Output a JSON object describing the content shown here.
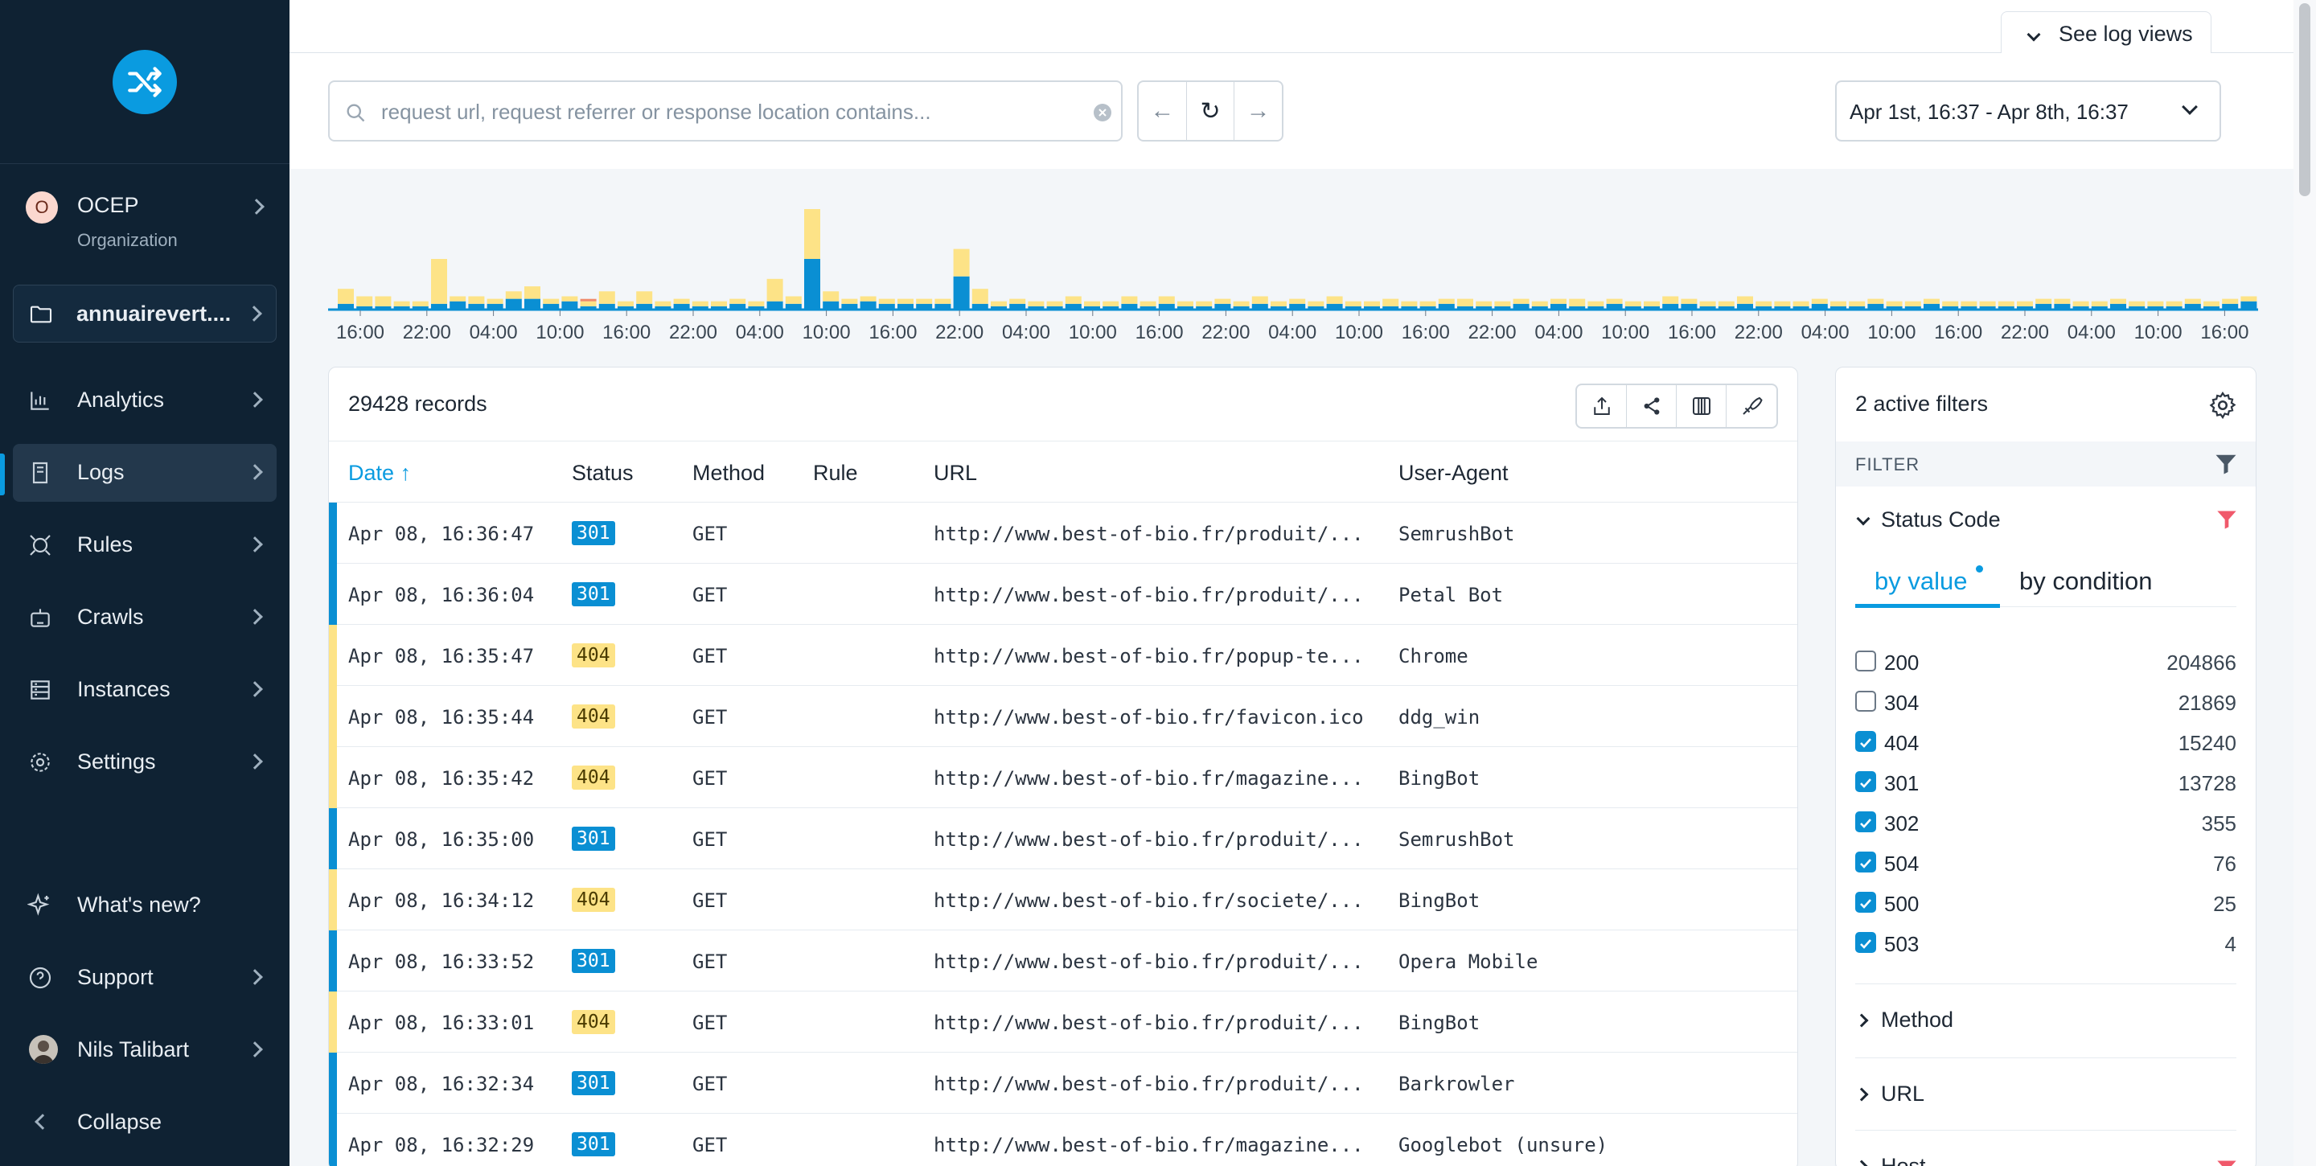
{
  "sidebar": {
    "org": {
      "initial": "O",
      "name": "OCEP",
      "subtitle": "Organization"
    },
    "project": {
      "name": "annuairevert...."
    },
    "items": [
      {
        "label": "Analytics"
      },
      {
        "label": "Logs"
      },
      {
        "label": "Rules"
      },
      {
        "label": "Crawls"
      },
      {
        "label": "Instances"
      },
      {
        "label": "Settings"
      }
    ],
    "footer": {
      "whats_new": "What's new?",
      "support": "Support",
      "user": "Nils Talibart",
      "collapse": "Collapse"
    }
  },
  "header": {
    "see_log_views": "See log views"
  },
  "search": {
    "placeholder": "request url, request referrer or response location contains..."
  },
  "date_range": {
    "label": "Apr 1st, 16:37 - Apr 8th, 16:37"
  },
  "histogram": {
    "ticks": [
      "16:00",
      "22:00",
      "04:00",
      "10:00",
      "16:00",
      "22:00",
      "04:00",
      "10:00",
      "16:00",
      "22:00",
      "04:00",
      "10:00",
      "16:00",
      "22:00",
      "04:00",
      "10:00",
      "16:00",
      "22:00",
      "04:00",
      "10:00",
      "16:00",
      "22:00",
      "04:00",
      "10:00",
      "16:00",
      "22:00",
      "04:00",
      "10:00",
      "16:00"
    ],
    "colors": {
      "status_301": "#0a8fd3",
      "status_404": "#fde387",
      "other": "#f08a6a"
    },
    "bars": [
      [
        2,
        6
      ],
      [
        1,
        4
      ],
      [
        1,
        4
      ],
      [
        1,
        2
      ],
      [
        1,
        2
      ],
      [
        2,
        18
      ],
      [
        3,
        2
      ],
      [
        2,
        3
      ],
      [
        2,
        2
      ],
      [
        4,
        3
      ],
      [
        4,
        5
      ],
      [
        2,
        2
      ],
      [
        3,
        2
      ],
      [
        1,
        2
      ],
      [
        2,
        5
      ],
      [
        1,
        2
      ],
      [
        2,
        5
      ],
      [
        1,
        2
      ],
      [
        2,
        2
      ],
      [
        1,
        2
      ],
      [
        1,
        2
      ],
      [
        2,
        2
      ],
      [
        1,
        2
      ],
      [
        3,
        9
      ],
      [
        2,
        3
      ],
      [
        20,
        20
      ],
      [
        3,
        4
      ],
      [
        2,
        2
      ],
      [
        3,
        2
      ],
      [
        2,
        2
      ],
      [
        2,
        2
      ],
      [
        2,
        2
      ],
      [
        2,
        2
      ],
      [
        13,
        11
      ],
      [
        2,
        6
      ],
      [
        1,
        2
      ],
      [
        2,
        2
      ],
      [
        1,
        2
      ],
      [
        1,
        2
      ],
      [
        2,
        3
      ],
      [
        1,
        2
      ],
      [
        1,
        2
      ],
      [
        2,
        3
      ],
      [
        1,
        2
      ],
      [
        2,
        3
      ],
      [
        1,
        2
      ],
      [
        1,
        2
      ],
      [
        2,
        2
      ],
      [
        1,
        2
      ],
      [
        2,
        3
      ],
      [
        1,
        2
      ],
      [
        2,
        2
      ],
      [
        1,
        2
      ],
      [
        2,
        3
      ],
      [
        1,
        2
      ],
      [
        1,
        2
      ],
      [
        1,
        3
      ],
      [
        1,
        2
      ],
      [
        1,
        2
      ],
      [
        2,
        2
      ],
      [
        1,
        3
      ],
      [
        1,
        2
      ],
      [
        1,
        2
      ],
      [
        2,
        2
      ],
      [
        1,
        2
      ],
      [
        2,
        2
      ],
      [
        1,
        3
      ],
      [
        1,
        2
      ],
      [
        2,
        2
      ],
      [
        1,
        2
      ],
      [
        1,
        2
      ],
      [
        2,
        3
      ],
      [
        2,
        2
      ],
      [
        1,
        2
      ],
      [
        1,
        2
      ],
      [
        2,
        3
      ],
      [
        1,
        2
      ],
      [
        1,
        2
      ],
      [
        1,
        2
      ],
      [
        2,
        2
      ],
      [
        1,
        2
      ],
      [
        1,
        2
      ],
      [
        2,
        2
      ],
      [
        1,
        2
      ],
      [
        1,
        2
      ],
      [
        2,
        2
      ],
      [
        1,
        2
      ],
      [
        1,
        2
      ],
      [
        1,
        2
      ],
      [
        1,
        2
      ],
      [
        1,
        2
      ],
      [
        2,
        2
      ],
      [
        2,
        2
      ],
      [
        1,
        2
      ],
      [
        1,
        2
      ],
      [
        2,
        2
      ],
      [
        1,
        2
      ],
      [
        1,
        2
      ],
      [
        1,
        2
      ],
      [
        2,
        2
      ],
      [
        1,
        2
      ],
      [
        2,
        2
      ],
      [
        3,
        2
      ]
    ],
    "red_marker_index": 13
  },
  "table": {
    "record_count": "29428 records",
    "columns": {
      "date": "Date",
      "status": "Status",
      "method": "Method",
      "rule": "Rule",
      "url": "URL",
      "user_agent": "User-Agent"
    },
    "rows": [
      {
        "date": "Apr 08, 16:36:47",
        "status": "301",
        "method": "GET",
        "url": "http://www.best-of-bio.fr/produit/...",
        "ua": "SemrushBot"
      },
      {
        "date": "Apr 08, 16:36:04",
        "status": "301",
        "method": "GET",
        "url": "http://www.best-of-bio.fr/produit/...",
        "ua": "Petal Bot"
      },
      {
        "date": "Apr 08, 16:35:47",
        "status": "404",
        "method": "GET",
        "url": "http://www.best-of-bio.fr/popup-te...",
        "ua": "Chrome"
      },
      {
        "date": "Apr 08, 16:35:44",
        "status": "404",
        "method": "GET",
        "url": "http://www.best-of-bio.fr/favicon.ico",
        "ua": "ddg_win"
      },
      {
        "date": "Apr 08, 16:35:42",
        "status": "404",
        "method": "GET",
        "url": "http://www.best-of-bio.fr/magazine...",
        "ua": "BingBot"
      },
      {
        "date": "Apr 08, 16:35:00",
        "status": "301",
        "method": "GET",
        "url": "http://www.best-of-bio.fr/produit/...",
        "ua": "SemrushBot"
      },
      {
        "date": "Apr 08, 16:34:12",
        "status": "404",
        "method": "GET",
        "url": "http://www.best-of-bio.fr/societe/...",
        "ua": "BingBot"
      },
      {
        "date": "Apr 08, 16:33:52",
        "status": "301",
        "method": "GET",
        "url": "http://www.best-of-bio.fr/produit/...",
        "ua": "Opera Mobile"
      },
      {
        "date": "Apr 08, 16:33:01",
        "status": "404",
        "method": "GET",
        "url": "http://www.best-of-bio.fr/produit/...",
        "ua": "BingBot"
      },
      {
        "date": "Apr 08, 16:32:34",
        "status": "301",
        "method": "GET",
        "url": "http://www.best-of-bio.fr/produit/...",
        "ua": "Barkrowler"
      },
      {
        "date": "Apr 08, 16:32:29",
        "status": "301",
        "method": "GET",
        "url": "http://www.best-of-bio.fr/magazine...",
        "ua": "Googlebot (unsure)"
      }
    ]
  },
  "filters": {
    "title": "2 active filters",
    "filter_label": "FILTER",
    "status_code": {
      "title": "Status Code",
      "tab_by_value": "by value",
      "tab_by_condition": "by condition",
      "options": [
        {
          "code": "200",
          "count": "204866",
          "checked": false
        },
        {
          "code": "304",
          "count": "21869",
          "checked": false
        },
        {
          "code": "404",
          "count": "15240",
          "checked": true
        },
        {
          "code": "301",
          "count": "13728",
          "checked": true
        },
        {
          "code": "302",
          "count": "355",
          "checked": true
        },
        {
          "code": "504",
          "count": "76",
          "checked": true
        },
        {
          "code": "500",
          "count": "25",
          "checked": true
        },
        {
          "code": "503",
          "count": "4",
          "checked": true
        }
      ]
    },
    "sections": {
      "method": "Method",
      "url": "URL",
      "host": "Host"
    }
  },
  "colors": {
    "accent": "#0a9be0",
    "sidebar_bg": "#0f2233",
    "filter_red": "#f0596b"
  }
}
